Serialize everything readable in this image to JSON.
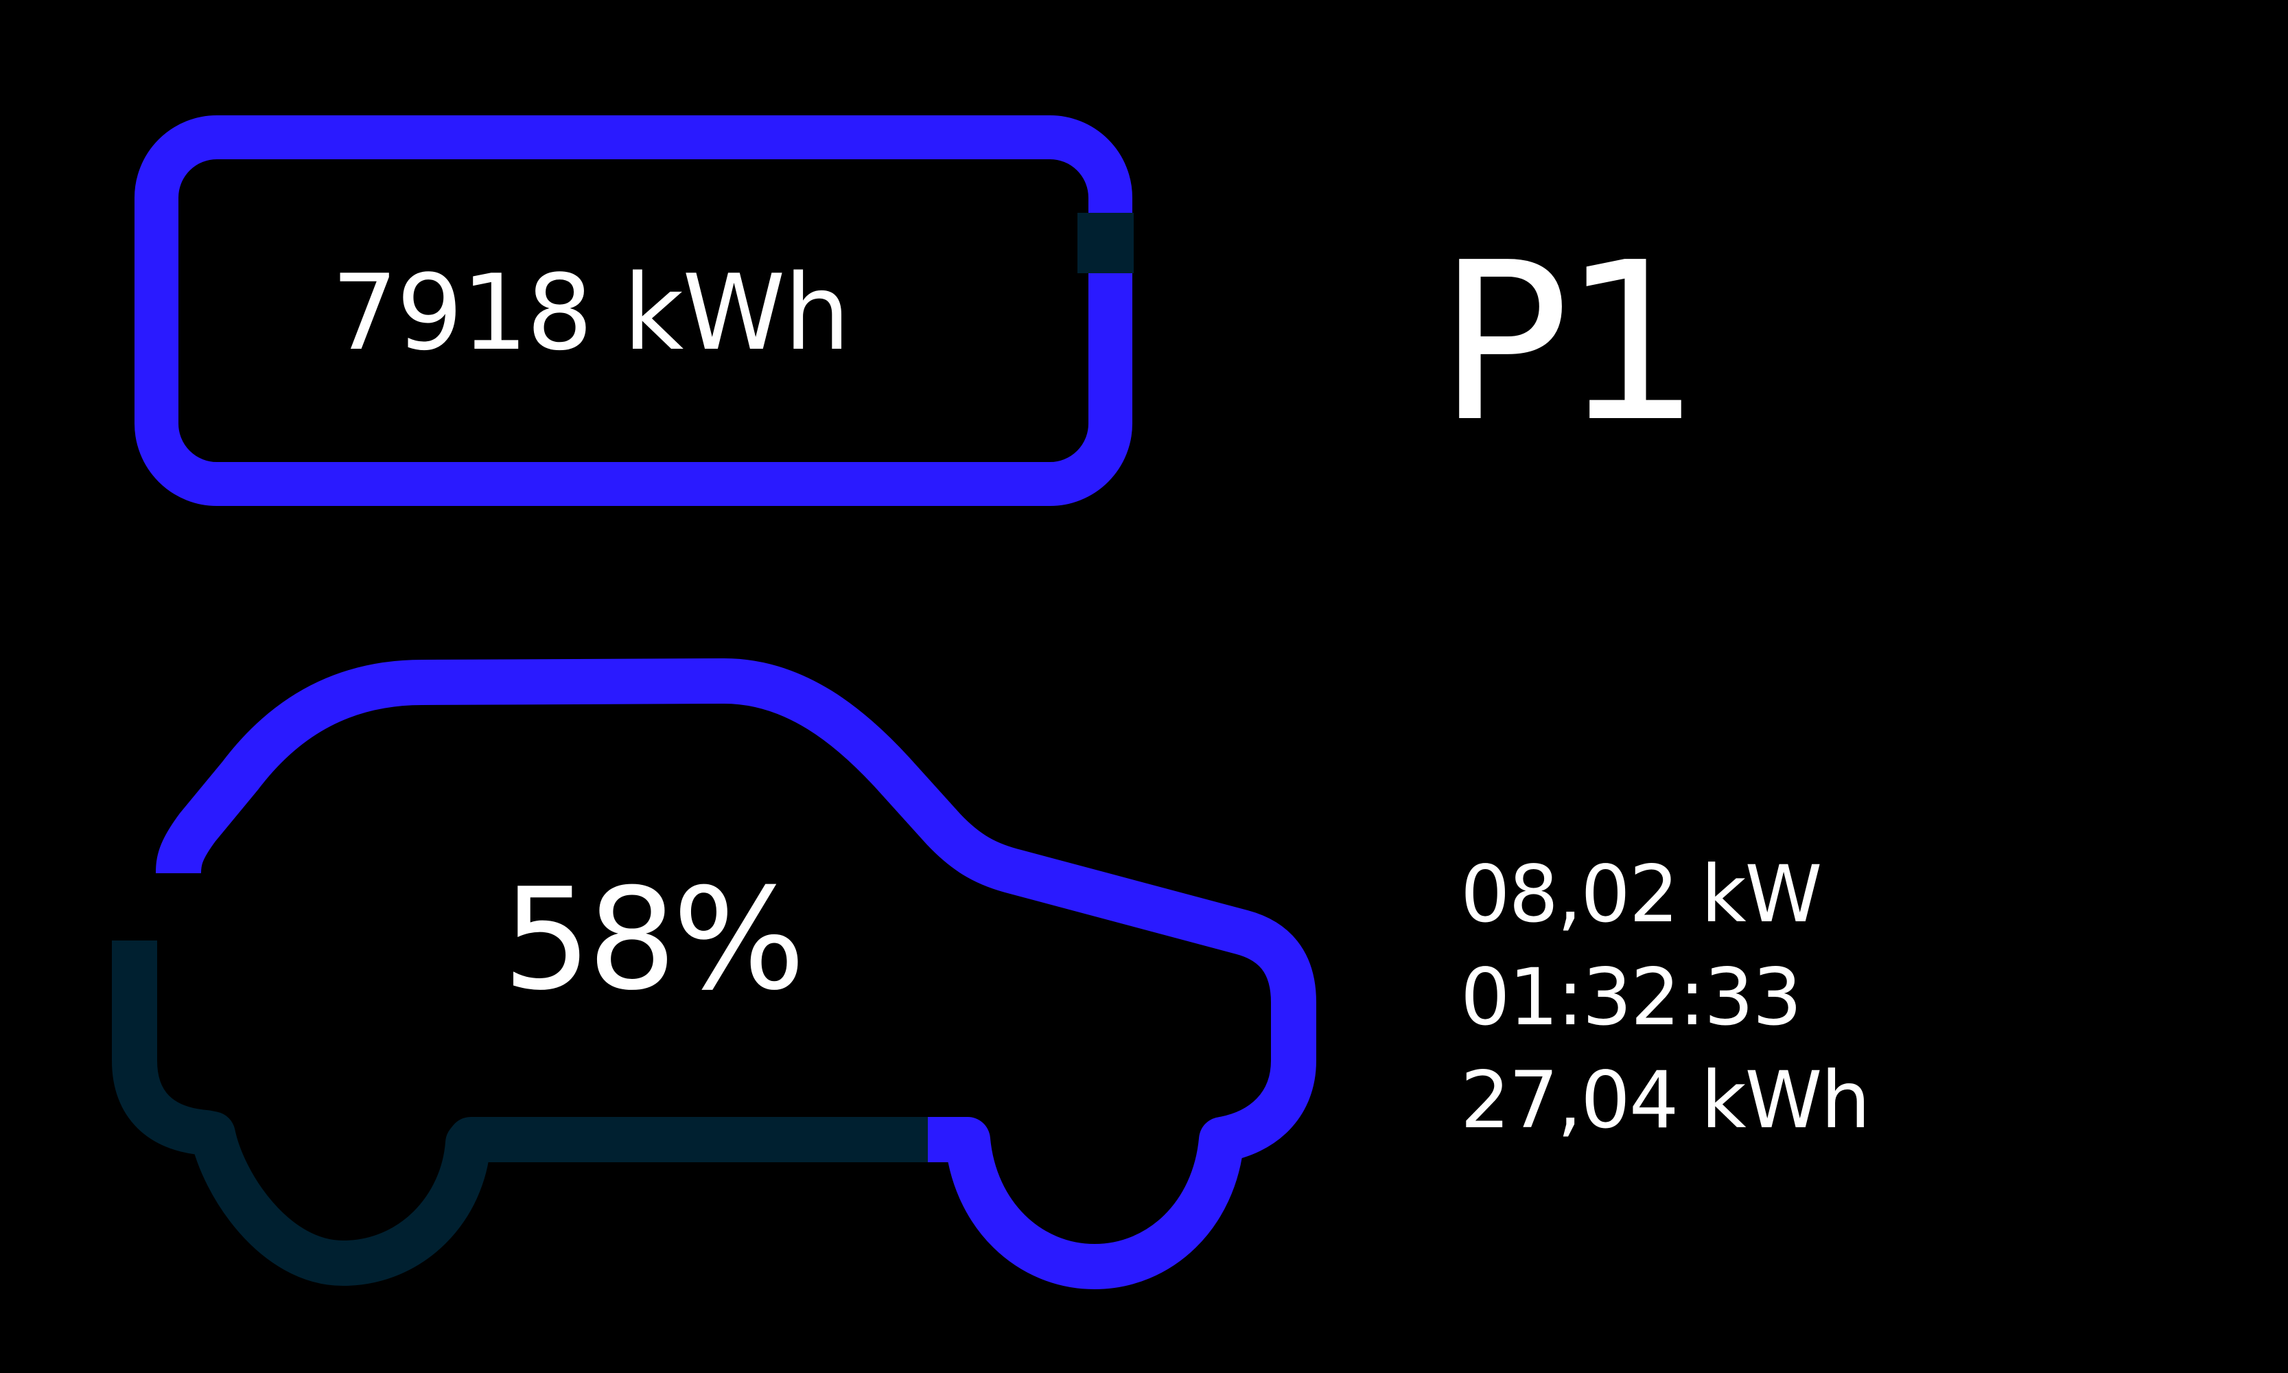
{
  "battery": {
    "energy": "7918 kWh",
    "frame_color": "#2A1AFF",
    "terminal_color": "#002030"
  },
  "station": {
    "id": "P1"
  },
  "vehicle": {
    "state_of_charge": "58%",
    "soc_percent": 58,
    "charged_color": "#2A1AFF",
    "empty_color": "#002030"
  },
  "stats": {
    "power": "08,02 kW",
    "duration": "01:32:33",
    "energy_delivered": "27,04 kWh"
  }
}
